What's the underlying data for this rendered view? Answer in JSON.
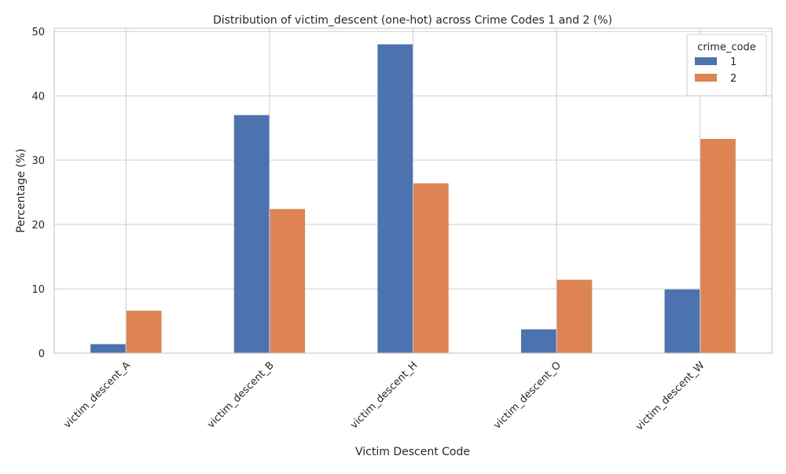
{
  "chart_data": {
    "type": "bar",
    "title": "Distribution of victim_descent (one-hot) across Crime Codes 1 and 2 (%)",
    "xlabel": "Victim Descent Code",
    "ylabel": "Percentage (%)",
    "ylim": [
      0,
      50.5
    ],
    "yticks": [
      0,
      10,
      20,
      30,
      40,
      50
    ],
    "grid": true,
    "categories": [
      "victim_descent_A",
      "victim_descent_B",
      "victim_descent_H",
      "victim_descent_O",
      "victim_descent_W"
    ],
    "series": [
      {
        "name": "1",
        "color": "#4c72b0",
        "values": [
          1.4,
          37.0,
          48.0,
          3.7,
          9.9
        ]
      },
      {
        "name": "2",
        "color": "#dd8452",
        "values": [
          6.6,
          22.4,
          26.4,
          11.4,
          33.3
        ]
      }
    ],
    "legend": {
      "title": "crime_code",
      "position": "top-right"
    }
  }
}
